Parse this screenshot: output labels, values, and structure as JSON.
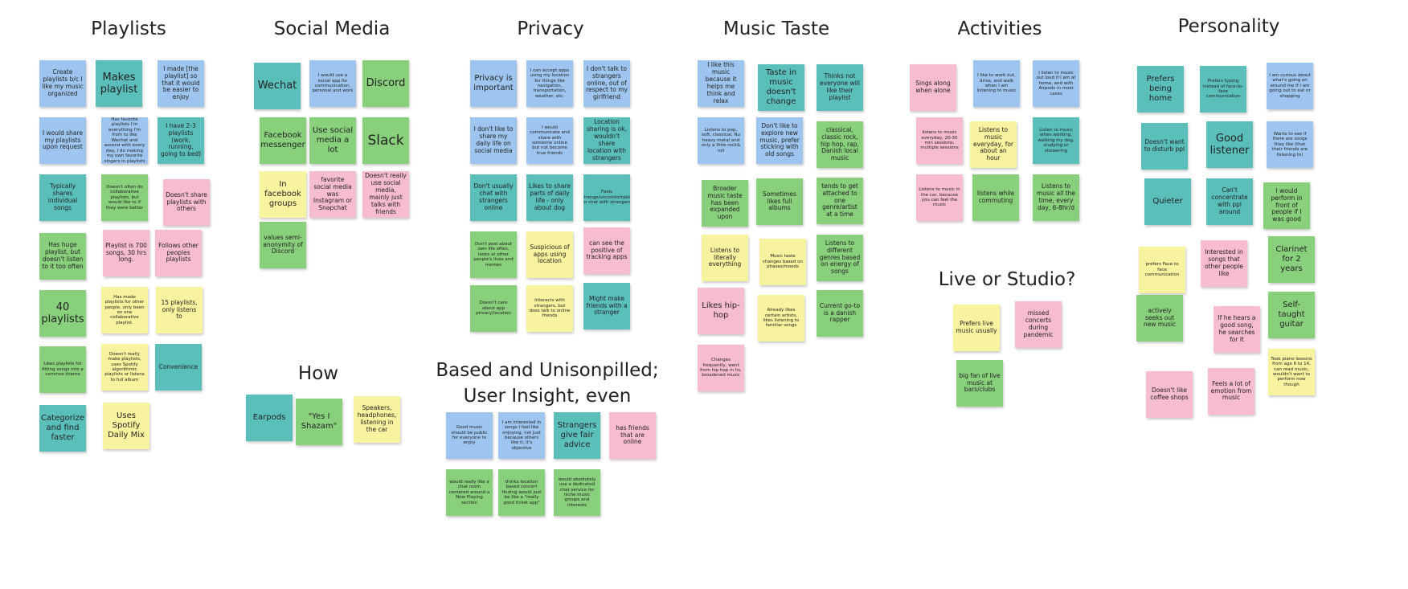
{
  "board": {
    "headings": [
      {
        "id": "playlists",
        "text": "Playlists"
      },
      {
        "id": "social",
        "text": "Social Media"
      },
      {
        "id": "privacy",
        "text": "Privacy"
      },
      {
        "id": "music",
        "text": "Music Taste"
      },
      {
        "id": "activities",
        "text": "Activities"
      },
      {
        "id": "personality",
        "text": "Personality"
      },
      {
        "id": "how",
        "text": "How"
      },
      {
        "id": "based1",
        "text": "Based and Unisonpilled;"
      },
      {
        "id": "based2",
        "text": "User Insight, even"
      },
      {
        "id": "live",
        "text": "Live or Studio?"
      }
    ],
    "notes": [
      {
        "text": "Create playlists b/c I like my music organized",
        "color": "blue"
      },
      {
        "text": "Makes playlist",
        "color": "teal"
      },
      {
        "text": "I made [the playlist] so that it would be easier to enjoy",
        "color": "blue"
      },
      {
        "text": "I would share my playlists upon request",
        "color": "blue"
      },
      {
        "text": "Has favorite playlists I'm everything I'm from to like Wechat and ascend with every day, I do making my own favorite singers in playlists",
        "color": "blue"
      },
      {
        "text": "I have 2-3 playlists (work, running, going to bed)",
        "color": "teal"
      },
      {
        "text": "Typically shares individual songs",
        "color": "teal"
      },
      {
        "text": "Doesn't often do collaborative playlists, but would like to if they were better",
        "color": "green"
      },
      {
        "text": "Doesn't share playlists with others",
        "color": "pink"
      },
      {
        "text": "Has huge playlist, but doesn't listen to it too often",
        "color": "green"
      },
      {
        "text": "Playlist is 700 songs, 30 hrs long.",
        "color": "pink"
      },
      {
        "text": "Follows other peoples playlists",
        "color": "pink"
      },
      {
        "text": "40 playlists",
        "color": "green"
      },
      {
        "text": "Has made playlists for other people, only been on one collaborative playlist.",
        "color": "yellow"
      },
      {
        "text": "15 playlists, only listens to",
        "color": "yellow"
      },
      {
        "text": "Likes playlists for fitting songs into a common theme",
        "color": "green"
      },
      {
        "text": "Doesn't really make playlists, uses Spotify algorithmic playlists or listens to full album",
        "color": "yellow"
      },
      {
        "text": "Convenience",
        "color": "teal"
      },
      {
        "text": "Categorize and find faster",
        "color": "teal"
      },
      {
        "text": "Uses Spotify Daily Mix",
        "color": "yellow"
      },
      {
        "text": "Wechat",
        "color": "teal"
      },
      {
        "text": "I would use a social app for communication, personal and work",
        "color": "blue"
      },
      {
        "text": "Discord",
        "color": "green"
      },
      {
        "text": "Facebook messenger",
        "color": "green"
      },
      {
        "text": "Use social media a lot",
        "color": "green"
      },
      {
        "text": "Slack",
        "color": "green"
      },
      {
        "text": "In facebook groups",
        "color": "yellow"
      },
      {
        "text": "favorite social media was Instagram or Snapchat",
        "color": "pink"
      },
      {
        "text": "Doesn't really use social media, mainly just talks with friends",
        "color": "pink"
      },
      {
        "text": "values semi-anonymity of Discord",
        "color": "green"
      },
      {
        "text": "Earpods",
        "color": "teal"
      },
      {
        "text": "\"Yes I Shazam\"",
        "color": "green"
      },
      {
        "text": "Speakers, headphones, listening in the car",
        "color": "yellow"
      },
      {
        "text": "Privacy is important",
        "color": "blue"
      },
      {
        "text": "I can accept apps using my location for things like navigation, transportation, weather, etc.",
        "color": "blue"
      },
      {
        "text": "I don't talk to strangers online, out of respect to my girlfriend",
        "color": "blue"
      },
      {
        "text": "I don't like to share my daily life on social media",
        "color": "blue"
      },
      {
        "text": "I would communicate and share with someone online but not become true friends",
        "color": "blue"
      },
      {
        "text": "Location sharing is ok, wouldn't share location with strangers",
        "color": "teal"
      },
      {
        "text": "Don't usually chat with strangers online",
        "color": "teal"
      },
      {
        "text": "Likes to share parts of daily life - only about dog",
        "color": "teal"
      },
      {
        "text": "Feels strange/uncomfortable to chat with strangers",
        "color": "teal"
      },
      {
        "text": "Don't post about own life often, looks at other people's lives and memes",
        "color": "green"
      },
      {
        "text": "Suspicious of apps using location",
        "color": "yellow"
      },
      {
        "text": "can see the positive of tracking apps",
        "color": "pink"
      },
      {
        "text": "Doesn't care about app privacy/location",
        "color": "green"
      },
      {
        "text": "Interacts with strangers, but does talk to online friends",
        "color": "yellow"
      },
      {
        "text": "Might make friends with a stranger",
        "color": "teal"
      },
      {
        "text": "Good music should be public for everyone to enjoy",
        "color": "blue"
      },
      {
        "text": "I am interested in songs I feel like enjoying, not just because others like it, it's objective",
        "color": "blue"
      },
      {
        "text": "Strangers give fair advice",
        "color": "teal"
      },
      {
        "text": "has friends that are online",
        "color": "pink"
      },
      {
        "text": "would really like a chat room centered around a Now Playing section",
        "color": "green"
      },
      {
        "text": "thinks location based concert finding would just be like a \"really good ticket app\"",
        "color": "green"
      },
      {
        "text": "would absolutely use a dedicated chat service for niche music groups and interests",
        "color": "green"
      },
      {
        "text": "I like this music because it helps me think and relax",
        "color": "blue"
      },
      {
        "text": "Taste in music doesn't change",
        "color": "teal"
      },
      {
        "text": "Thinks not everyone will like their playlist",
        "color": "teal"
      },
      {
        "text": "Listens to pop, soft, classical, Nu heavy metal and only a little rock& roll",
        "color": "blue"
      },
      {
        "text": "Don't like to explore new music, prefer sticking with old songs",
        "color": "blue"
      },
      {
        "text": "classical, classic rock, hip hop, rap, Danish local music",
        "color": "green"
      },
      {
        "text": "Broader music taste has been expanded upon",
        "color": "green"
      },
      {
        "text": "Sometimes likes full albums",
        "color": "green"
      },
      {
        "text": "tends to get attached to one genre/artist at a time",
        "color": "green"
      },
      {
        "text": "Listens to literally everything",
        "color": "yellow"
      },
      {
        "text": "Music taste changes based on phases/moods",
        "color": "yellow"
      },
      {
        "text": "Listens to different genres based on energy of songs",
        "color": "green"
      },
      {
        "text": "Likes hip-hop",
        "color": "pink"
      },
      {
        "text": "Already likes certain artists, likes listening to familiar songs",
        "color": "yellow"
      },
      {
        "text": "Current go-to is a danish rapper",
        "color": "green"
      },
      {
        "text": "Changes frequently, went from hip hop in hs, broadened music",
        "color": "pink"
      },
      {
        "text": "Sings along when alone",
        "color": "pink"
      },
      {
        "text": "I like to work out, drive, and walk when I am listening to music",
        "color": "blue"
      },
      {
        "text": "I listen to music out loud if I am at home, and with Airpods in most cases",
        "color": "blue"
      },
      {
        "text": "listens to music everyday, 20-30 min sessions, multiple sessions",
        "color": "pink"
      },
      {
        "text": "Listens to music everyday, for about an hour",
        "color": "yellow"
      },
      {
        "text": "Listen to music when working, walking my dog, studying or showering",
        "color": "teal"
      },
      {
        "text": "Listens to music in the car, because you can feel the music",
        "color": "pink"
      },
      {
        "text": "listens while commuting",
        "color": "green"
      },
      {
        "text": "Listens to music all the time, every day, 6-8hr/d",
        "color": "green"
      },
      {
        "text": "Prefers live music usually",
        "color": "yellow"
      },
      {
        "text": "missed concerts during pandemic",
        "color": "pink"
      },
      {
        "text": "big fan of live music at bars/clubs",
        "color": "green"
      },
      {
        "text": "Prefers being home",
        "color": "teal"
      },
      {
        "text": "Prefers typing instead of face-to-face communication",
        "color": "teal"
      },
      {
        "text": "I am curious about what's going on around me if I am going out to eat or shopping",
        "color": "blue"
      },
      {
        "text": "Doesn't want to disturb ppl",
        "color": "teal"
      },
      {
        "text": "Good listener",
        "color": "teal"
      },
      {
        "text": "Wants to see if there are songs they like (that their friends are listening to)",
        "color": "blue"
      },
      {
        "text": "Quieter",
        "color": "teal"
      },
      {
        "text": "Can't concentrate with ppl around",
        "color": "teal"
      },
      {
        "text": "I would perform in front of people if I was good",
        "color": "green"
      },
      {
        "text": "prefers Face to face communication",
        "color": "yellow"
      },
      {
        "text": "Interested in songs that other people like",
        "color": "pink"
      },
      {
        "text": "Clarinet for 2 years",
        "color": "green"
      },
      {
        "text": "actively seeks out new music",
        "color": "green"
      },
      {
        "text": "If he hears a good song, he searches for it",
        "color": "pink"
      },
      {
        "text": "Self-taught guitar",
        "color": "green"
      },
      {
        "text": "Doesn't like coffee shops",
        "color": "pink"
      },
      {
        "text": "Feels a lot of emotion from music",
        "color": "pink"
      },
      {
        "text": "Took piano lessons from age 6 to 14, can read music, wouldn't want to perform now though",
        "color": "yellow"
      }
    ]
  }
}
